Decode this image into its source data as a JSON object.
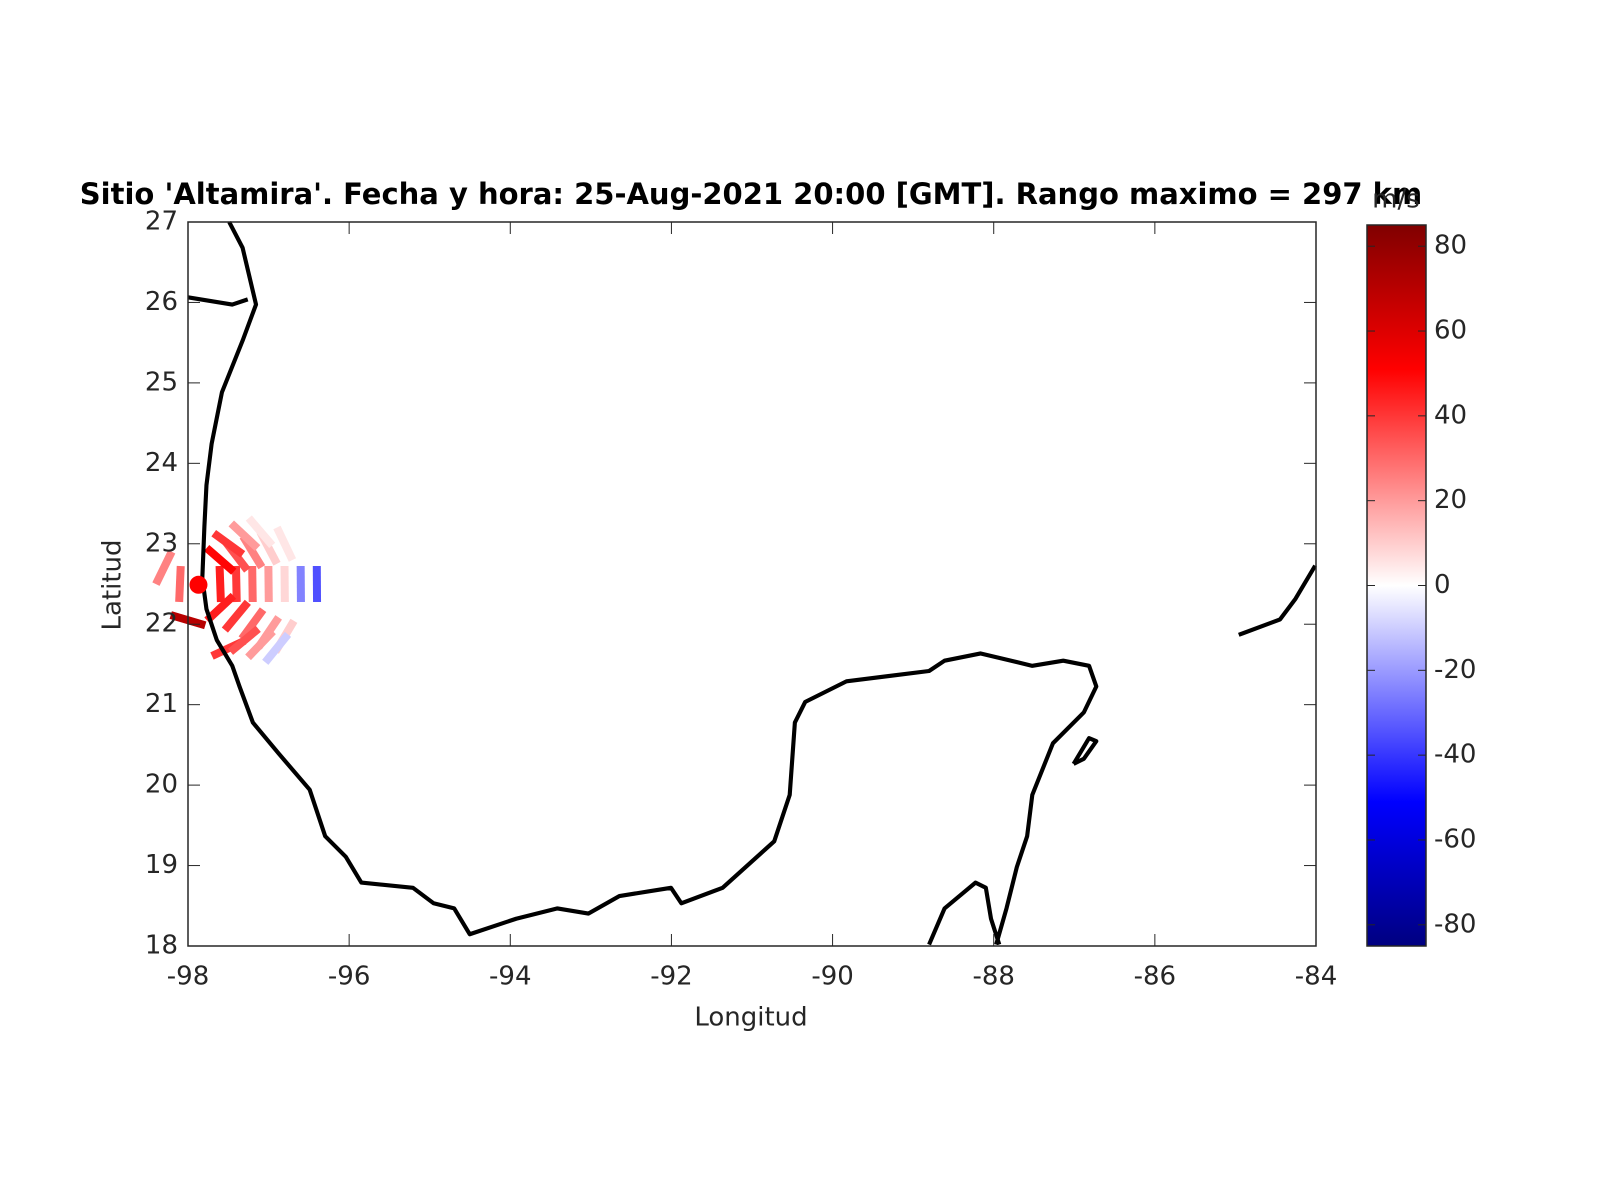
{
  "chart_data": {
    "type": "radar-map",
    "title": "Sitio 'Altamira'. Fecha y hora: 25-Aug-2021 20:00 [GMT]. Rango maximo = 297 km",
    "xlabel": "Longitud",
    "ylabel": "Latitud",
    "xlim": [
      -98,
      -84
    ],
    "ylim": [
      18,
      27
    ],
    "xticks": [
      -98,
      -96,
      -94,
      -92,
      -90,
      -88,
      -86,
      -84
    ],
    "yticks": [
      18,
      19,
      20,
      21,
      22,
      23,
      24,
      25,
      26,
      27
    ],
    "site": {
      "lon": -97.87,
      "lat": 22.49,
      "color": "#ff0000"
    },
    "cells": {
      "lon": [
        -97.6,
        -97.4,
        -97.2,
        -97.0,
        -96.8,
        -96.6,
        -96.4,
        -97.6,
        -97.4,
        -97.2,
        -97.0,
        -96.8,
        -97.6,
        -97.4,
        -97.2,
        -97.0,
        -96.8,
        -97.5,
        -97.3,
        -97.1,
        -96.9,
        -97.5,
        -97.3,
        -97.1,
        -98.3,
        -98.1,
        -98.0
      ],
      "lat": [
        22.5,
        22.5,
        22.5,
        22.5,
        22.5,
        22.5,
        22.5,
        22.8,
        22.85,
        22.9,
        22.95,
        23.0,
        22.2,
        22.1,
        22.0,
        21.9,
        21.85,
        21.7,
        21.8,
        21.75,
        21.7,
        23.0,
        23.1,
        23.15,
        22.7,
        22.5,
        22.05
      ],
      "values": [
        45,
        40,
        30,
        20,
        8,
        -25,
        -35,
        50,
        35,
        25,
        10,
        5,
        45,
        40,
        30,
        20,
        10,
        40,
        35,
        20,
        -10,
        40,
        20,
        5,
        25,
        30,
        70
      ]
    },
    "colorbar": {
      "label": "m/s",
      "clim": [
        -85,
        85
      ],
      "ticks": [
        -80,
        -60,
        -40,
        -20,
        0,
        20,
        40,
        60,
        80
      ]
    }
  }
}
